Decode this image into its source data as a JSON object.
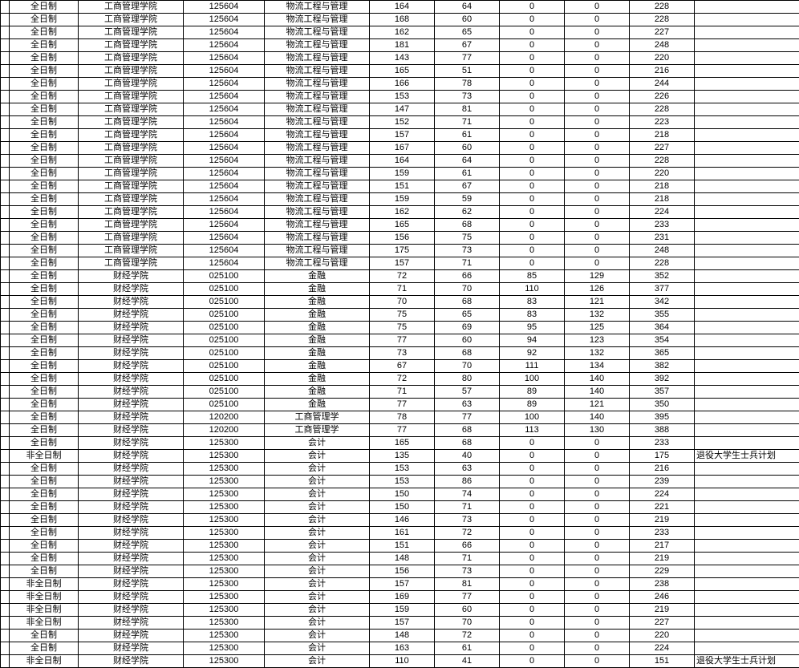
{
  "table": {
    "background_color": "#ffffff",
    "border_color": "#000000",
    "font_size": 11,
    "rows": [
      [
        "",
        "全日制",
        "工商管理学院",
        "125604",
        "物流工程与管理",
        "164",
        "64",
        "0",
        "0",
        "228",
        ""
      ],
      [
        "",
        "全日制",
        "工商管理学院",
        "125604",
        "物流工程与管理",
        "168",
        "60",
        "0",
        "0",
        "228",
        ""
      ],
      [
        "",
        "全日制",
        "工商管理学院",
        "125604",
        "物流工程与管理",
        "162",
        "65",
        "0",
        "0",
        "227",
        ""
      ],
      [
        "",
        "全日制",
        "工商管理学院",
        "125604",
        "物流工程与管理",
        "181",
        "67",
        "0",
        "0",
        "248",
        ""
      ],
      [
        "",
        "全日制",
        "工商管理学院",
        "125604",
        "物流工程与管理",
        "143",
        "77",
        "0",
        "0",
        "220",
        ""
      ],
      [
        "",
        "全日制",
        "工商管理学院",
        "125604",
        "物流工程与管理",
        "165",
        "51",
        "0",
        "0",
        "216",
        ""
      ],
      [
        "",
        "全日制",
        "工商管理学院",
        "125604",
        "物流工程与管理",
        "166",
        "78",
        "0",
        "0",
        "244",
        ""
      ],
      [
        "",
        "全日制",
        "工商管理学院",
        "125604",
        "物流工程与管理",
        "153",
        "73",
        "0",
        "0",
        "226",
        ""
      ],
      [
        "",
        "全日制",
        "工商管理学院",
        "125604",
        "物流工程与管理",
        "147",
        "81",
        "0",
        "0",
        "228",
        ""
      ],
      [
        "",
        "全日制",
        "工商管理学院",
        "125604",
        "物流工程与管理",
        "152",
        "71",
        "0",
        "0",
        "223",
        ""
      ],
      [
        "",
        "全日制",
        "工商管理学院",
        "125604",
        "物流工程与管理",
        "157",
        "61",
        "0",
        "0",
        "218",
        ""
      ],
      [
        "",
        "全日制",
        "工商管理学院",
        "125604",
        "物流工程与管理",
        "167",
        "60",
        "0",
        "0",
        "227",
        ""
      ],
      [
        "",
        "全日制",
        "工商管理学院",
        "125604",
        "物流工程与管理",
        "164",
        "64",
        "0",
        "0",
        "228",
        ""
      ],
      [
        "",
        "全日制",
        "工商管理学院",
        "125604",
        "物流工程与管理",
        "159",
        "61",
        "0",
        "0",
        "220",
        ""
      ],
      [
        "",
        "全日制",
        "工商管理学院",
        "125604",
        "物流工程与管理",
        "151",
        "67",
        "0",
        "0",
        "218",
        ""
      ],
      [
        "",
        "全日制",
        "工商管理学院",
        "125604",
        "物流工程与管理",
        "159",
        "59",
        "0",
        "0",
        "218",
        ""
      ],
      [
        "",
        "全日制",
        "工商管理学院",
        "125604",
        "物流工程与管理",
        "162",
        "62",
        "0",
        "0",
        "224",
        ""
      ],
      [
        "",
        "全日制",
        "工商管理学院",
        "125604",
        "物流工程与管理",
        "165",
        "68",
        "0",
        "0",
        "233",
        ""
      ],
      [
        "",
        "全日制",
        "工商管理学院",
        "125604",
        "物流工程与管理",
        "156",
        "75",
        "0",
        "0",
        "231",
        ""
      ],
      [
        "",
        "全日制",
        "工商管理学院",
        "125604",
        "物流工程与管理",
        "175",
        "73",
        "0",
        "0",
        "248",
        ""
      ],
      [
        "",
        "全日制",
        "工商管理学院",
        "125604",
        "物流工程与管理",
        "157",
        "71",
        "0",
        "0",
        "228",
        ""
      ],
      [
        "",
        "全日制",
        "财经学院",
        "025100",
        "金融",
        "72",
        "66",
        "85",
        "129",
        "352",
        ""
      ],
      [
        "",
        "全日制",
        "财经学院",
        "025100",
        "金融",
        "71",
        "70",
        "110",
        "126",
        "377",
        ""
      ],
      [
        "",
        "全日制",
        "财经学院",
        "025100",
        "金融",
        "70",
        "68",
        "83",
        "121",
        "342",
        ""
      ],
      [
        "",
        "全日制",
        "财经学院",
        "025100",
        "金融",
        "75",
        "65",
        "83",
        "132",
        "355",
        ""
      ],
      [
        "",
        "全日制",
        "财经学院",
        "025100",
        "金融",
        "75",
        "69",
        "95",
        "125",
        "364",
        ""
      ],
      [
        "",
        "全日制",
        "财经学院",
        "025100",
        "金融",
        "77",
        "60",
        "94",
        "123",
        "354",
        ""
      ],
      [
        "",
        "全日制",
        "财经学院",
        "025100",
        "金融",
        "73",
        "68",
        "92",
        "132",
        "365",
        ""
      ],
      [
        "",
        "全日制",
        "财经学院",
        "025100",
        "金融",
        "67",
        "70",
        "111",
        "134",
        "382",
        ""
      ],
      [
        "",
        "全日制",
        "财经学院",
        "025100",
        "金融",
        "72",
        "80",
        "100",
        "140",
        "392",
        ""
      ],
      [
        "",
        "全日制",
        "财经学院",
        "025100",
        "金融",
        "71",
        "57",
        "89",
        "140",
        "357",
        ""
      ],
      [
        "",
        "全日制",
        "财经学院",
        "025100",
        "金融",
        "77",
        "63",
        "89",
        "121",
        "350",
        ""
      ],
      [
        "",
        "全日制",
        "财经学院",
        "120200",
        "工商管理学",
        "78",
        "77",
        "100",
        "140",
        "395",
        ""
      ],
      [
        "",
        "全日制",
        "财经学院",
        "120200",
        "工商管理学",
        "77",
        "68",
        "113",
        "130",
        "388",
        ""
      ],
      [
        "",
        "全日制",
        "财经学院",
        "125300",
        "会计",
        "165",
        "68",
        "0",
        "0",
        "233",
        ""
      ],
      [
        "",
        "非全日制",
        "财经学院",
        "125300",
        "会计",
        "135",
        "40",
        "0",
        "0",
        "175",
        "退役大学生士兵计划"
      ],
      [
        "",
        "全日制",
        "财经学院",
        "125300",
        "会计",
        "153",
        "63",
        "0",
        "0",
        "216",
        ""
      ],
      [
        "",
        "全日制",
        "财经学院",
        "125300",
        "会计",
        "153",
        "86",
        "0",
        "0",
        "239",
        ""
      ],
      [
        "",
        "全日制",
        "财经学院",
        "125300",
        "会计",
        "150",
        "74",
        "0",
        "0",
        "224",
        ""
      ],
      [
        "",
        "全日制",
        "财经学院",
        "125300",
        "会计",
        "150",
        "71",
        "0",
        "0",
        "221",
        ""
      ],
      [
        "",
        "全日制",
        "财经学院",
        "125300",
        "会计",
        "146",
        "73",
        "0",
        "0",
        "219",
        ""
      ],
      [
        "",
        "全日制",
        "财经学院",
        "125300",
        "会计",
        "161",
        "72",
        "0",
        "0",
        "233",
        ""
      ],
      [
        "",
        "全日制",
        "财经学院",
        "125300",
        "会计",
        "151",
        "66",
        "0",
        "0",
        "217",
        ""
      ],
      [
        "",
        "全日制",
        "财经学院",
        "125300",
        "会计",
        "148",
        "71",
        "0",
        "0",
        "219",
        ""
      ],
      [
        "",
        "全日制",
        "财经学院",
        "125300",
        "会计",
        "156",
        "73",
        "0",
        "0",
        "229",
        ""
      ],
      [
        "",
        "非全日制",
        "财经学院",
        "125300",
        "会计",
        "157",
        "81",
        "0",
        "0",
        "238",
        ""
      ],
      [
        "",
        "非全日制",
        "财经学院",
        "125300",
        "会计",
        "169",
        "77",
        "0",
        "0",
        "246",
        ""
      ],
      [
        "",
        "非全日制",
        "财经学院",
        "125300",
        "会计",
        "159",
        "60",
        "0",
        "0",
        "219",
        ""
      ],
      [
        "",
        "非全日制",
        "财经学院",
        "125300",
        "会计",
        "157",
        "70",
        "0",
        "0",
        "227",
        ""
      ],
      [
        "",
        "全日制",
        "财经学院",
        "125300",
        "会计",
        "148",
        "72",
        "0",
        "0",
        "220",
        ""
      ],
      [
        "",
        "全日制",
        "财经学院",
        "125300",
        "会计",
        "163",
        "61",
        "0",
        "0",
        "224",
        ""
      ],
      [
        "",
        "非全日制",
        "财经学院",
        "125300",
        "会计",
        "110",
        "41",
        "0",
        "0",
        "151",
        "退役大学生士兵计划"
      ]
    ]
  }
}
